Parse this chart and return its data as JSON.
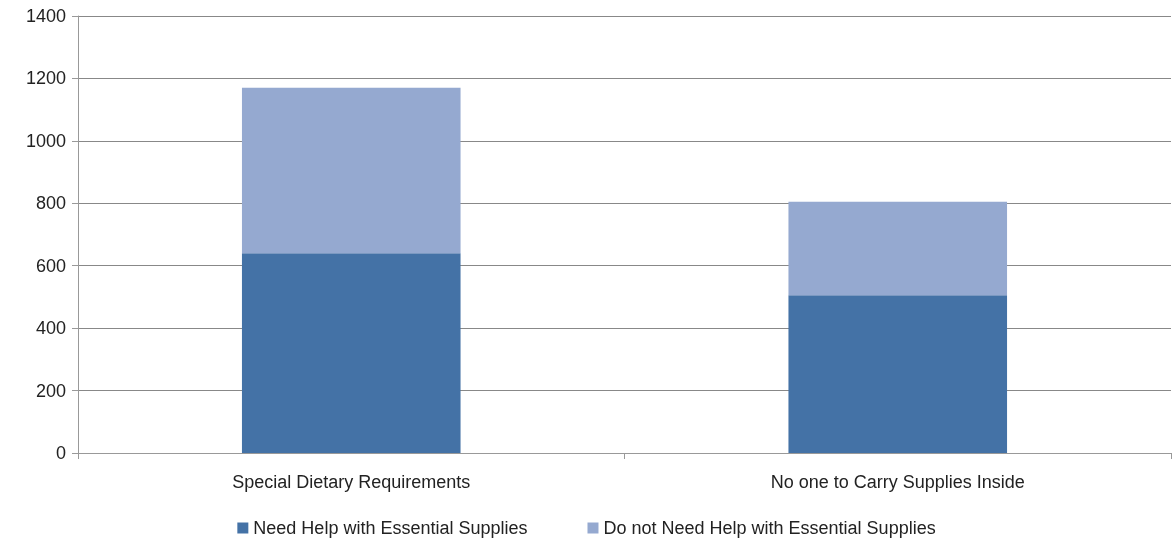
{
  "chart_data": {
    "type": "bar",
    "stacked": true,
    "categories": [
      "Special Dietary Requirements",
      "No one to Carry Supplies Inside"
    ],
    "series": [
      {
        "name": "Need Help with Essential Supplies",
        "color": "#4472a6",
        "values": [
          640,
          505
        ]
      },
      {
        "name": "Do not Need Help with Essential Supplies",
        "color": "#95a9d0",
        "values": [
          530,
          300
        ]
      }
    ],
    "ylim": [
      0,
      1400
    ],
    "yticks": [
      0,
      200,
      400,
      600,
      800,
      1000,
      1200,
      1400
    ],
    "grid": "y",
    "legend": "bottom"
  }
}
